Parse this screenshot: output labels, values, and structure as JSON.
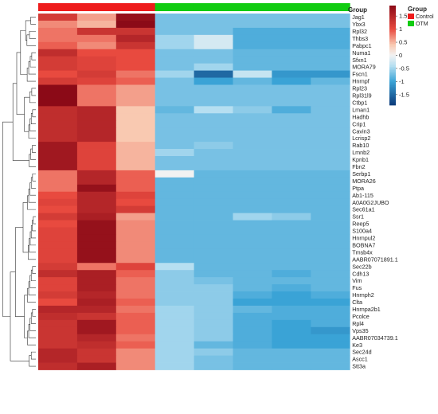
{
  "chart_data": {
    "type": "heatmap",
    "title": "",
    "xlabel": "",
    "ylabel": "",
    "annotation_title": "Group",
    "columns": [
      {
        "group": "Control"
      },
      {
        "group": "Control"
      },
      {
        "group": "Control"
      },
      {
        "group": "OTM"
      },
      {
        "group": "OTM"
      },
      {
        "group": "OTM"
      },
      {
        "group": "OTM"
      },
      {
        "group": "OTM"
      }
    ],
    "legend": {
      "title": "Group",
      "entries": [
        {
          "label": "Control",
          "color": "#ee1c1c"
        },
        {
          "label": "OTM",
          "color": "#11cc11"
        }
      ],
      "colorbar_ticks": [
        "1.5",
        "1",
        "0.5",
        "0",
        "-0.5",
        "-1",
        "-1.5"
      ],
      "colorbar_tick_values": [
        1.5,
        1,
        0.5,
        0,
        -0.5,
        -1,
        -1.5
      ],
      "range": [
        -1.9,
        1.9
      ],
      "colors": {
        "high": "#8b0a17",
        "mid_high": "#e84a3f",
        "light": "#f9c9b1",
        "mid": "#f2f2f2",
        "light_low": "#b6dff1",
        "mid_low": "#3aa3d6",
        "low": "#0b3a7a"
      }
    },
    "rows": [
      "Jag1",
      "Ybx3",
      "Rpl32",
      "Thbs3",
      "Pabpc1",
      "Numa1",
      "Sfxn1",
      "MORA79",
      "Fscn1",
      "Hnrnpf",
      "Rpl23",
      "Rpl31l9",
      "Ctbp1",
      "Lman1",
      "Hadhb",
      "Crip1",
      "Cavin3",
      "Lcrisp2",
      "Rab10",
      "Lmnb2",
      "Kpnb1",
      "Fbn2",
      "Serbp1",
      "MORA26",
      "Ptpa",
      "Ab1-115",
      "A0A0G2JUBO",
      "Sec61a1",
      "Ssr1",
      "Reep5",
      "S100a4",
      "Hnrnpul2",
      "BOBNA7",
      "Tmsb4x",
      "AABR07071891.1",
      "Sec22b",
      "Cdh13",
      "Vim",
      "Fus",
      "Hnrnph2",
      "Clta",
      "Hnrnpa2b1",
      "Pcolce",
      "Rpl4",
      "Vps35",
      "AABR07034739.1",
      "Ke3",
      "Sec24d",
      "Ascc1",
      "Stt3a"
    ],
    "values": [
      [
        1.2,
        0.6,
        1.8,
        -0.7,
        -0.7,
        -0.7,
        -0.7,
        -0.7
      ],
      [
        0.7,
        0.5,
        1.9,
        -0.7,
        -0.7,
        -0.7,
        -0.7,
        -0.7
      ],
      [
        0.8,
        1.3,
        1.3,
        -0.7,
        -0.7,
        -0.9,
        -0.9,
        -0.9
      ],
      [
        0.8,
        0.8,
        1.5,
        -0.5,
        -0.2,
        -0.9,
        -0.9,
        -0.9
      ],
      [
        0.9,
        0.7,
        1.3,
        -0.5,
        -0.2,
        -0.9,
        -0.9,
        -0.9
      ],
      [
        1.4,
        1.0,
        1.0,
        -0.7,
        -0.7,
        -0.8,
        -0.8,
        -0.8
      ],
      [
        1.2,
        1.1,
        1.0,
        -0.7,
        -0.7,
        -0.8,
        -0.8,
        -0.8
      ],
      [
        1.2,
        1.1,
        1.0,
        -0.7,
        -0.5,
        -0.8,
        -0.8,
        -0.8
      ],
      [
        1.0,
        1.2,
        0.8,
        -0.5,
        -1.5,
        -0.3,
        -1.1,
        -1.1
      ],
      [
        1.2,
        1.1,
        0.9,
        -0.7,
        -1.0,
        -0.8,
        -1.0,
        -0.8
      ],
      [
        1.9,
        0.8,
        0.6,
        -0.7,
        -0.7,
        -0.7,
        -0.7,
        -0.7
      ],
      [
        1.9,
        0.8,
        0.6,
        -0.7,
        -0.7,
        -0.7,
        -0.7,
        -0.7
      ],
      [
        1.9,
        0.8,
        0.6,
        -0.7,
        -0.7,
        -0.7,
        -0.7,
        -0.7
      ],
      [
        1.4,
        1.5,
        0.4,
        -0.8,
        -0.4,
        -0.6,
        -0.9,
        -0.7
      ],
      [
        1.4,
        1.5,
        0.4,
        -0.7,
        -0.7,
        -0.7,
        -0.7,
        -0.7
      ],
      [
        1.4,
        1.5,
        0.4,
        -0.7,
        -0.7,
        -0.7,
        -0.7,
        -0.7
      ],
      [
        1.4,
        1.5,
        0.4,
        -0.7,
        -0.7,
        -0.7,
        -0.7,
        -0.7
      ],
      [
        1.4,
        1.5,
        0.4,
        -0.7,
        -0.7,
        -0.7,
        -0.7,
        -0.7
      ],
      [
        1.7,
        1.1,
        0.5,
        -0.7,
        -0.6,
        -0.7,
        -0.7,
        -0.7
      ],
      [
        1.7,
        1.1,
        0.5,
        -0.5,
        -0.7,
        -0.7,
        -0.7,
        -0.7
      ],
      [
        1.7,
        1.1,
        0.5,
        -0.7,
        -0.7,
        -0.7,
        -0.7,
        -0.7
      ],
      [
        1.7,
        1.1,
        0.5,
        -0.7,
        -0.7,
        -0.7,
        -0.7,
        -0.7
      ],
      [
        0.8,
        1.5,
        0.9,
        0.0,
        -0.8,
        -0.8,
        -0.8,
        -0.8
      ],
      [
        0.8,
        1.5,
        0.9,
        -0.8,
        -0.8,
        -0.8,
        -0.8,
        -0.8
      ],
      [
        0.8,
        1.8,
        0.9,
        -0.8,
        -0.8,
        -0.8,
        -0.8,
        -0.8
      ],
      [
        1.0,
        1.5,
        1.1,
        -0.8,
        -0.8,
        -0.8,
        -0.8,
        -0.8
      ],
      [
        1.1,
        1.5,
        1.0,
        -0.8,
        -0.8,
        -0.8,
        -0.8,
        -0.8
      ],
      [
        1.0,
        1.5,
        1.2,
        -0.8,
        -0.8,
        -0.8,
        -0.8,
        -0.8
      ],
      [
        1.2,
        1.6,
        0.6,
        -0.8,
        -0.8,
        -0.5,
        -0.6,
        -0.8
      ],
      [
        1.0,
        1.8,
        0.7,
        -0.8,
        -0.8,
        -0.8,
        -0.8,
        -0.8
      ],
      [
        1.1,
        1.8,
        0.7,
        -0.8,
        -0.8,
        -0.8,
        -0.8,
        -0.8
      ],
      [
        1.1,
        1.8,
        0.7,
        -0.8,
        -0.8,
        -0.8,
        -0.8,
        -0.8
      ],
      [
        1.1,
        1.8,
        0.7,
        -0.8,
        -0.8,
        -0.8,
        -0.8,
        -0.8
      ],
      [
        1.1,
        1.8,
        0.7,
        -0.8,
        -0.8,
        -0.8,
        -0.8,
        -0.8
      ],
      [
        1.1,
        1.8,
        0.7,
        -0.8,
        -0.8,
        -0.8,
        -0.8,
        -0.8
      ],
      [
        1.2,
        0.8,
        1.1,
        -0.4,
        -0.8,
        -0.8,
        -0.8,
        -0.8
      ],
      [
        1.4,
        1.6,
        0.9,
        -0.6,
        -0.8,
        -0.8,
        -0.9,
        -0.8
      ],
      [
        1.1,
        1.6,
        0.8,
        -0.6,
        -0.7,
        -0.8,
        -0.8,
        -0.8
      ],
      [
        1.1,
        1.6,
        0.8,
        -0.6,
        -0.6,
        -0.8,
        -0.9,
        -0.8
      ],
      [
        1.2,
        1.5,
        0.8,
        -0.6,
        -0.6,
        -0.9,
        -1.0,
        -0.9
      ],
      [
        1.0,
        1.6,
        0.9,
        -0.6,
        -0.6,
        -1.0,
        -1.0,
        -1.0
      ],
      [
        1.5,
        1.5,
        0.8,
        -0.5,
        -0.6,
        -0.8,
        -0.9,
        -0.9
      ],
      [
        1.4,
        1.3,
        0.9,
        -0.5,
        -0.6,
        -0.9,
        -0.9,
        -0.9
      ],
      [
        1.3,
        1.7,
        0.9,
        -0.5,
        -0.6,
        -0.9,
        -1.0,
        -0.9
      ],
      [
        1.3,
        1.7,
        0.9,
        -0.5,
        -0.6,
        -0.9,
        -1.0,
        -1.1
      ],
      [
        1.3,
        1.5,
        0.8,
        -0.5,
        -0.6,
        -0.9,
        -1.0,
        -1.0
      ],
      [
        1.3,
        1.4,
        0.9,
        -0.5,
        -0.8,
        -0.9,
        -1.0,
        -1.0
      ],
      [
        1.5,
        1.3,
        0.7,
        -0.5,
        -0.6,
        -0.8,
        -0.8,
        -0.8
      ],
      [
        1.5,
        1.3,
        0.7,
        -0.5,
        -0.7,
        -0.8,
        -0.8,
        -0.8
      ],
      [
        1.4,
        1.6,
        0.7,
        -0.5,
        -0.7,
        -0.8,
        -0.8,
        -0.8
      ]
    ]
  }
}
